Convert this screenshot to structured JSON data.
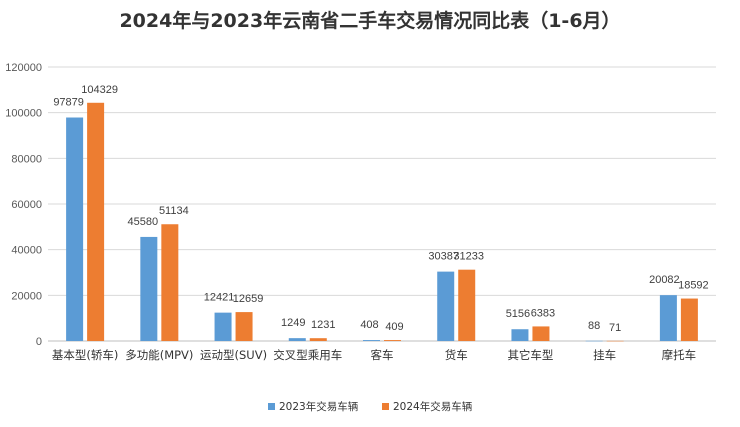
{
  "chart_data": {
    "type": "bar",
    "title": "2024年与2023年云南省二手车交易情况同比表（1-6月）",
    "categories": [
      "基本型(轿车)",
      "多功能(MPV)",
      "运动型(SUV)",
      "交叉型乘用车",
      "客车",
      "货车",
      "其它车型",
      "挂车",
      "摩托车"
    ],
    "series": [
      {
        "name": "2023年交易车辆",
        "color": "#5B9BD5",
        "values": [
          97879,
          45580,
          12421,
          1249,
          408,
          30387,
          5156,
          88,
          20082
        ]
      },
      {
        "name": "2024年交易车辆",
        "color": "#ED7D31",
        "values": [
          104329,
          51134,
          12659,
          1231,
          409,
          31233,
          6383,
          71,
          18592
        ]
      }
    ],
    "ylim": [
      0,
      120000
    ],
    "yticks": [
      0,
      20000,
      40000,
      60000,
      80000,
      100000,
      120000
    ],
    "grid": true,
    "legend_position": "bottom",
    "data_labels": true
  }
}
